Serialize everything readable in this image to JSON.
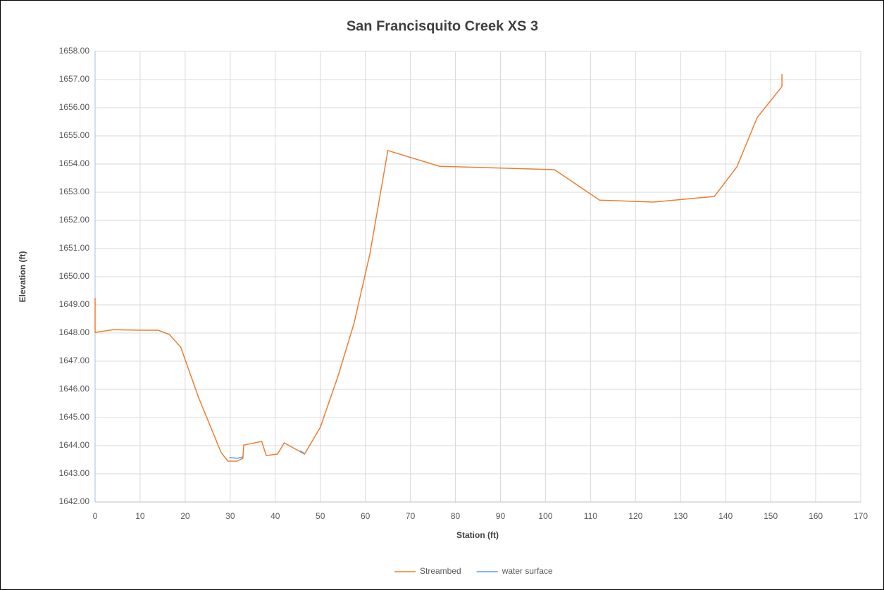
{
  "chart_data": {
    "type": "line",
    "title": "San Francisquito Creek XS 3",
    "xlabel": "Station (ft)",
    "ylabel": "Elevation (ft)",
    "xlim": [
      0,
      170
    ],
    "xticks": [
      0,
      10,
      20,
      30,
      40,
      50,
      60,
      70,
      80,
      90,
      100,
      110,
      120,
      130,
      140,
      150,
      160,
      170
    ],
    "ylim": [
      1642,
      1658
    ],
    "yticks": [
      {
        "value": 1642,
        "label": "1642.00"
      },
      {
        "value": 1643,
        "label": "1643.00"
      },
      {
        "value": 1644,
        "label": "1644.00"
      },
      {
        "value": 1645,
        "label": "1645.00"
      },
      {
        "value": 1646,
        "label": "1646.00"
      },
      {
        "value": 1647,
        "label": "1647.00"
      },
      {
        "value": 1648,
        "label": "1648.00"
      },
      {
        "value": 1649,
        "label": "1649.00"
      },
      {
        "value": 1650,
        "label": "1650.00"
      },
      {
        "value": 1651,
        "label": "1651.00"
      },
      {
        "value": 1652,
        "label": "1652.00"
      },
      {
        "value": 1653,
        "label": "1653.00"
      },
      {
        "value": 1654,
        "label": "1654.00"
      },
      {
        "value": 1655,
        "label": "1655.00"
      },
      {
        "value": 1656,
        "label": "1656.00"
      },
      {
        "value": 1657,
        "label": "1657.00"
      },
      {
        "value": 1658,
        "label": "1658.00"
      }
    ],
    "grid": true,
    "legend": "bottom",
    "series": [
      {
        "name": "Streambed",
        "color": "#ED7D31",
        "x": [
          0,
          0,
          4,
          10,
          14,
          16.5,
          19,
          23,
          28,
          29.5,
          31.5,
          32.8,
          33,
          37,
          38,
          40.5,
          42,
          46.5,
          50,
          54,
          57.5,
          61,
          65,
          76.5,
          102,
          112,
          124,
          137.5,
          142.5,
          147,
          152.5,
          152.5
        ],
        "values": [
          1649.25,
          1648.02,
          1648.12,
          1648.1,
          1648.1,
          1647.95,
          1647.5,
          1645.7,
          1643.75,
          1643.45,
          1643.45,
          1643.55,
          1644.02,
          1644.15,
          1643.65,
          1643.7,
          1644.1,
          1643.7,
          1644.65,
          1646.5,
          1648.35,
          1650.8,
          1654.48,
          1653.92,
          1653.8,
          1652.72,
          1652.65,
          1652.85,
          1653.9,
          1655.65,
          1656.75,
          1657.2
        ]
      },
      {
        "name": "water surface",
        "color": "#5B9BD5",
        "x": [
          29.8,
          31.5,
          32.8,
          40,
          45.5,
          46.5
        ],
        "values": [
          1643.58,
          1643.55,
          1643.6,
          null,
          1643.82,
          1643.72
        ]
      }
    ]
  }
}
